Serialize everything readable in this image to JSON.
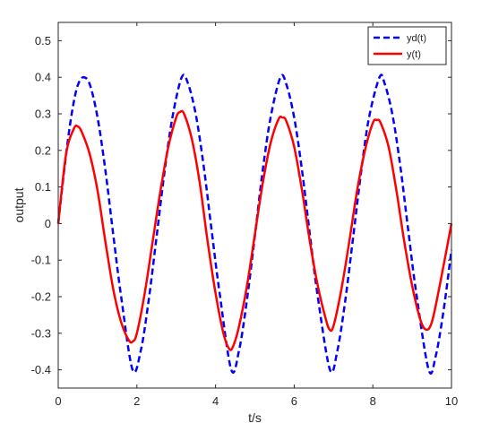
{
  "chart_data": {
    "type": "line",
    "xlabel": "t/s",
    "ylabel": "output",
    "xlim": [
      0,
      10
    ],
    "ylim": [
      -0.45,
      0.55
    ],
    "xticks": [
      0,
      2,
      4,
      6,
      8,
      10
    ],
    "yticks": [
      -0.4,
      -0.3,
      -0.2,
      -0.1,
      0,
      0.1,
      0.2,
      0.3,
      0.4,
      0.5
    ],
    "xtick_labels": [
      "0",
      "2",
      "4",
      "6",
      "8",
      "10"
    ],
    "ytick_labels": [
      "-0.4",
      "-0.3",
      "-0.2",
      "-0.1",
      "0",
      "0.1",
      "0.2",
      "0.3",
      "0.4",
      "0.5"
    ],
    "grid": false,
    "legend_position": "top-right",
    "series": [
      {
        "name": "yd(t)",
        "color": "#0000ff",
        "style": "dashed",
        "x": [
          0,
          0.1,
          0.2,
          0.3,
          0.4,
          0.5,
          0.63,
          0.8,
          1.0,
          1.2,
          1.4,
          1.6,
          1.89,
          2.1,
          2.3,
          2.5,
          2.7,
          2.9,
          3.14,
          3.3,
          3.5,
          3.7,
          3.9,
          4.1,
          4.4,
          4.6,
          4.8,
          5.0,
          5.2,
          5.4,
          5.65,
          5.8,
          6.0,
          6.2,
          6.4,
          6.6,
          6.91,
          7.1,
          7.3,
          7.5,
          7.7,
          7.9,
          8.17,
          8.3,
          8.5,
          8.7,
          8.9,
          9.1,
          9.42,
          9.6,
          9.8,
          10.0
        ],
        "y": [
          0,
          0.097,
          0.189,
          0.27,
          0.335,
          0.379,
          0.4,
          0.381,
          0.29,
          0.145,
          -0.031,
          -0.2,
          -0.4,
          -0.347,
          -0.21,
          -0.037,
          0.139,
          0.288,
          0.4,
          0.383,
          0.297,
          0.156,
          -0.018,
          -0.187,
          -0.4,
          -0.346,
          -0.208,
          -0.034,
          0.145,
          0.29,
          0.4,
          0.381,
          0.29,
          0.145,
          -0.031,
          -0.2,
          -0.4,
          -0.347,
          -0.21,
          -0.037,
          0.139,
          0.288,
          0.4,
          0.383,
          0.297,
          0.156,
          -0.018,
          -0.187,
          -0.4,
          -0.362,
          -0.237,
          -0.072
        ]
      },
      {
        "name": "y(t)",
        "color": "#ff0000",
        "style": "solid",
        "x": [
          0,
          0.2,
          0.4,
          0.5,
          0.6,
          0.8,
          1.0,
          1.2,
          1.4,
          1.6,
          1.8,
          1.9,
          2.0,
          2.2,
          2.4,
          2.6,
          2.8,
          3.0,
          3.1,
          3.2,
          3.4,
          3.6,
          3.8,
          4.0,
          4.2,
          4.35,
          4.45,
          4.6,
          4.8,
          5.0,
          5.2,
          5.4,
          5.6,
          5.7,
          5.8,
          6.0,
          6.2,
          6.4,
          6.6,
          6.8,
          6.9,
          7.0,
          7.2,
          7.4,
          7.6,
          7.8,
          8.0,
          8.1,
          8.2,
          8.4,
          8.6,
          8.8,
          9.0,
          9.2,
          9.35,
          9.5,
          9.7,
          10.0
        ],
        "y": [
          0,
          0.19,
          0.26,
          0.265,
          0.25,
          0.19,
          0.09,
          -0.05,
          -0.18,
          -0.27,
          -0.32,
          -0.322,
          -0.3,
          -0.19,
          -0.05,
          0.09,
          0.21,
          0.29,
          0.305,
          0.3,
          0.23,
          0.11,
          -0.05,
          -0.19,
          -0.3,
          -0.343,
          -0.335,
          -0.28,
          -0.17,
          -0.03,
          0.11,
          0.22,
          0.285,
          0.29,
          0.28,
          0.21,
          0.09,
          -0.05,
          -0.17,
          -0.26,
          -0.29,
          -0.28,
          -0.18,
          -0.05,
          0.09,
          0.2,
          0.275,
          0.283,
          0.275,
          0.21,
          0.09,
          -0.05,
          -0.17,
          -0.26,
          -0.29,
          -0.27,
          -0.17,
          0.0
        ]
      }
    ]
  }
}
